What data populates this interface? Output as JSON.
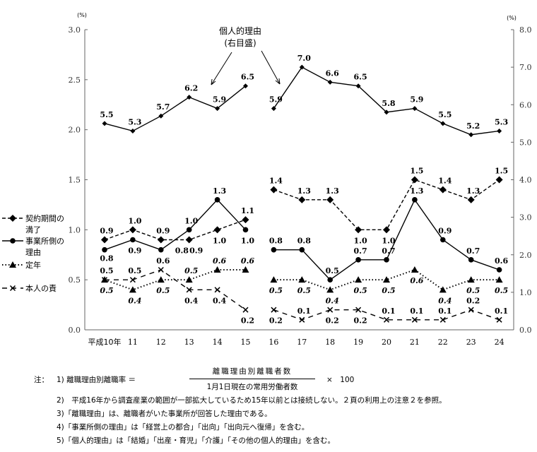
{
  "chart_data": {
    "type": "line",
    "categories": [
      "平成10年",
      "11",
      "12",
      "13",
      "14",
      "15",
      "16",
      "17",
      "18",
      "19",
      "20",
      "21",
      "22",
      "23",
      "24"
    ],
    "left_axis": {
      "unit": "(%)",
      "ylim": [
        0,
        3.0
      ],
      "ticks": [
        "0.0",
        "0.5",
        "1.0",
        "1.5",
        "2.0",
        "2.5",
        "3.0"
      ]
    },
    "right_axis": {
      "unit": "(%)",
      "ylim": [
        0,
        8.0
      ],
      "ticks": [
        "0.0",
        "1.0",
        "2.0",
        "3.0",
        "4.0",
        "5.0",
        "6.0",
        "7.0",
        "8.0"
      ]
    },
    "break_between": [
      "15",
      "16"
    ],
    "grid": false,
    "legend_placement": "left",
    "series": [
      {
        "name": "個人的理由(右目盛)",
        "axis": "right",
        "marker": "small-diamond",
        "line": "solid",
        "values": [
          5.5,
          5.3,
          5.7,
          6.2,
          5.9,
          6.5,
          5.9,
          7.0,
          6.6,
          6.5,
          5.8,
          5.9,
          5.5,
          5.2,
          5.3
        ]
      },
      {
        "name": "契約期間の満了",
        "axis": "left",
        "marker": "diamond",
        "line": "dashed",
        "values": [
          0.9,
          1.0,
          0.9,
          0.9,
          1.0,
          1.1,
          1.4,
          1.3,
          1.3,
          1.0,
          1.0,
          1.5,
          1.4,
          1.3,
          1.5
        ]
      },
      {
        "name": "事業所側の理由",
        "axis": "left",
        "marker": "circle",
        "line": "solid",
        "values": [
          0.8,
          0.9,
          0.8,
          1.0,
          1.3,
          1.0,
          0.8,
          0.8,
          0.5,
          0.7,
          0.7,
          1.3,
          0.9,
          0.7,
          0.6
        ]
      },
      {
        "name": "定年",
        "axis": "left",
        "marker": "triangle",
        "line": "dotted",
        "values": [
          0.5,
          0.4,
          0.5,
          0.5,
          0.6,
          0.6,
          0.5,
          0.5,
          0.4,
          0.5,
          0.5,
          0.6,
          0.4,
          0.5,
          0.5
        ]
      },
      {
        "name": "本人の責",
        "axis": "left",
        "marker": "x",
        "line": "long-dash",
        "values": [
          0.5,
          0.5,
          0.6,
          0.4,
          0.4,
          0.2,
          0.2,
          0.1,
          0.2,
          0.2,
          0.1,
          0.1,
          0.1,
          0.2,
          0.1
        ]
      }
    ],
    "annotation": {
      "line1": "個人的理由",
      "line2": "(右目盛)"
    },
    "legend": [
      {
        "line1": "契約期間の",
        "line2": "満了"
      },
      {
        "line1": "事業所側の",
        "line2": "理由"
      },
      {
        "line1": "定年",
        "line2": ""
      },
      {
        "line1": "本人の責",
        "line2": ""
      }
    ]
  },
  "notes": {
    "label": "注：",
    "n1_prefix": "1) 離職理由別離職率 ＝",
    "n1_numerator": "離職理由別離職者数",
    "n1_denominator": "1月1日現在の常用労働者数",
    "n1_suffix": "×　100",
    "n2": "2)　平成16年から調査産業の範囲が一部拡大しているため15年以前とは接続しない。２頁の利用上の注意２を参照。",
    "n3": "3)「離職理由」は、離職者がいた事業所が回答した理由である。",
    "n4": "4)「事業所側の理由」は「経営上の都合」「出向」「出向元へ復帰」を含む。",
    "n5": "5)「個人的理由」は「結婚」「出産・育児」「介護」「その他の個人的理由」を含む。"
  }
}
